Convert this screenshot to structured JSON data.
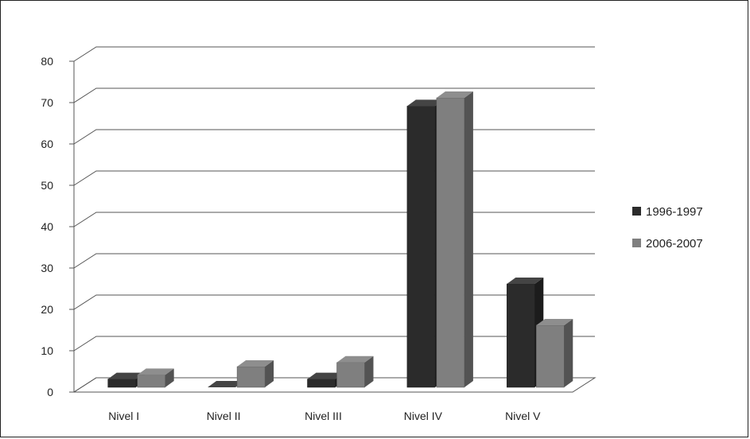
{
  "chart_data": {
    "type": "bar",
    "style": "3d-clustered-column",
    "categories": [
      "Nivel I",
      "Nivel II",
      "Nivel III",
      "Nivel IV",
      "Nivel V"
    ],
    "series": [
      {
        "name": "1996-1997",
        "color": "#2b2b2b",
        "values": [
          2,
          0,
          2,
          68,
          25
        ]
      },
      {
        "name": "2006-2007",
        "color": "#7f7f7f",
        "values": [
          3,
          5,
          6,
          70,
          15
        ]
      }
    ],
    "ylim": [
      0,
      80
    ],
    "yticks": [
      0,
      10,
      20,
      30,
      40,
      50,
      60,
      70,
      80
    ],
    "grid": true,
    "legend": "right"
  }
}
